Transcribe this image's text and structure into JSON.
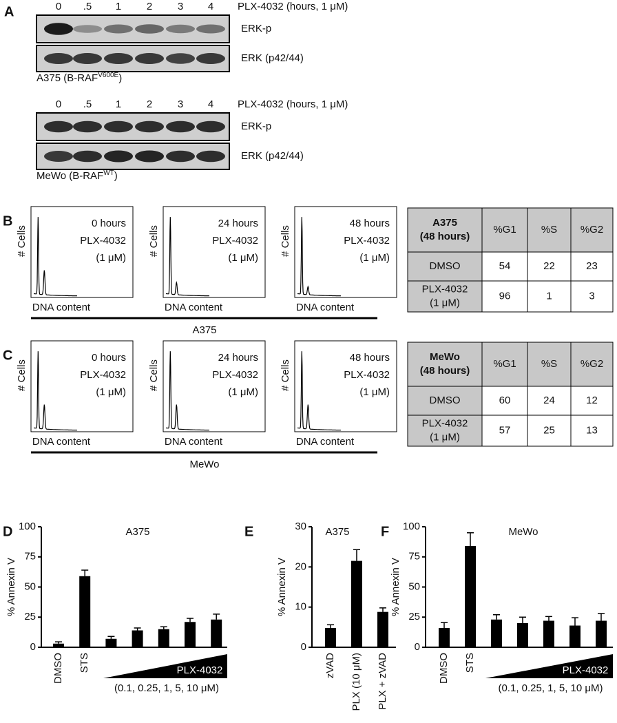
{
  "blots": {
    "label": "A",
    "treatment": "PLX-4032 (hours, 1 μM)",
    "lanes": [
      "0",
      ".5",
      "1",
      "2",
      "3",
      "4"
    ],
    "sets": [
      {
        "bands": [
          "ERK-p",
          "ERK (p42/44)"
        ],
        "cell_line": "A375 (B-RAF",
        "superscript": "V600E",
        "suffix": ")"
      },
      {
        "bands": [
          "ERK-p",
          "ERK (p42/44)"
        ],
        "cell_line": "MeWo (B-RAF",
        "superscript": "WT",
        "suffix": ")"
      }
    ]
  },
  "cell_cycle": [
    {
      "label": "B",
      "y_label": "# Cells",
      "x_label": "DNA content",
      "cell_line": "A375",
      "plots": [
        [
          "0 hours",
          "PLX-4032",
          "(1 μM)"
        ],
        [
          "24 hours",
          "PLX-4032",
          "(1 μM)"
        ],
        [
          "48 hours",
          "PLX-4032",
          "(1 μM)"
        ]
      ],
      "table": {
        "header": [
          [
            "A375",
            "(48 hours)"
          ],
          [
            "%G1"
          ],
          [
            "%S"
          ],
          [
            "%G2"
          ]
        ],
        "rows": [
          [
            [
              "DMSO"
            ],
            54,
            22,
            23
          ],
          [
            [
              "PLX-4032",
              "(1 μM)"
            ],
            96,
            1,
            3
          ]
        ]
      }
    },
    {
      "label": "C",
      "y_label": "# Cells",
      "x_label": "DNA content",
      "cell_line": "MeWo",
      "plots": [
        [
          "0 hours",
          "PLX-4032",
          "(1 μM)"
        ],
        [
          "24 hours",
          "PLX-4032",
          "(1 μM)"
        ],
        [
          "48 hours",
          "PLX-4032",
          "(1 μM)"
        ]
      ],
      "table": {
        "header": [
          [
            "MeWo",
            "(48 hours)"
          ],
          [
            "%G1"
          ],
          [
            "%S"
          ],
          [
            "%G2"
          ]
        ],
        "rows": [
          [
            [
              "DMSO"
            ],
            60,
            24,
            12
          ],
          [
            [
              "PLX-4032",
              "(1 μM)"
            ],
            57,
            25,
            13
          ]
        ]
      }
    }
  ],
  "chart_data": [
    {
      "type": "bar",
      "label": "D",
      "title": "A375",
      "y_label": "% Annexin V",
      "color": "#000000",
      "categories": [
        "DMSO",
        "STS",
        null,
        null,
        null,
        null,
        null
      ],
      "values": [
        3,
        59,
        7,
        14,
        15,
        21,
        23
      ],
      "errors": [
        1.5,
        5,
        2,
        2,
        2,
        3,
        4.5
      ],
      "ylim": [
        0,
        100
      ],
      "yticks": [
        0,
        25,
        50,
        75,
        100
      ],
      "wedge_label": "PLX-4032",
      "wedge_note": "(0.1, 0.25, 1, 5, 10 μM)"
    },
    {
      "type": "bar",
      "label": "E",
      "title": "A375",
      "y_label": "% Annexin V",
      "color": "#000000",
      "categories": [
        "zVAD",
        "PLX (10 μM)",
        "PLX + zVAD"
      ],
      "values": [
        4.8,
        21.5,
        8.8
      ],
      "errors": [
        0.8,
        2.8,
        1
      ],
      "ylim": [
        0,
        30
      ],
      "yticks": [
        0,
        10,
        20,
        30
      ]
    },
    {
      "type": "bar",
      "label": "F",
      "title": "MeWo",
      "y_label": "% Annexin V",
      "color": "#000000",
      "categories": [
        "DMSO",
        "STS",
        null,
        null,
        null,
        null,
        null
      ],
      "values": [
        16,
        84,
        23,
        20,
        22,
        18,
        22
      ],
      "errors": [
        4.5,
        11,
        4,
        5,
        3.5,
        6.5,
        6
      ],
      "ylim": [
        0,
        100
      ],
      "yticks": [
        0,
        25,
        50,
        75,
        100
      ],
      "wedge_label": "PLX-4032",
      "wedge_note": "(0.1, 0.25, 1, 5, 10 μM)"
    }
  ]
}
